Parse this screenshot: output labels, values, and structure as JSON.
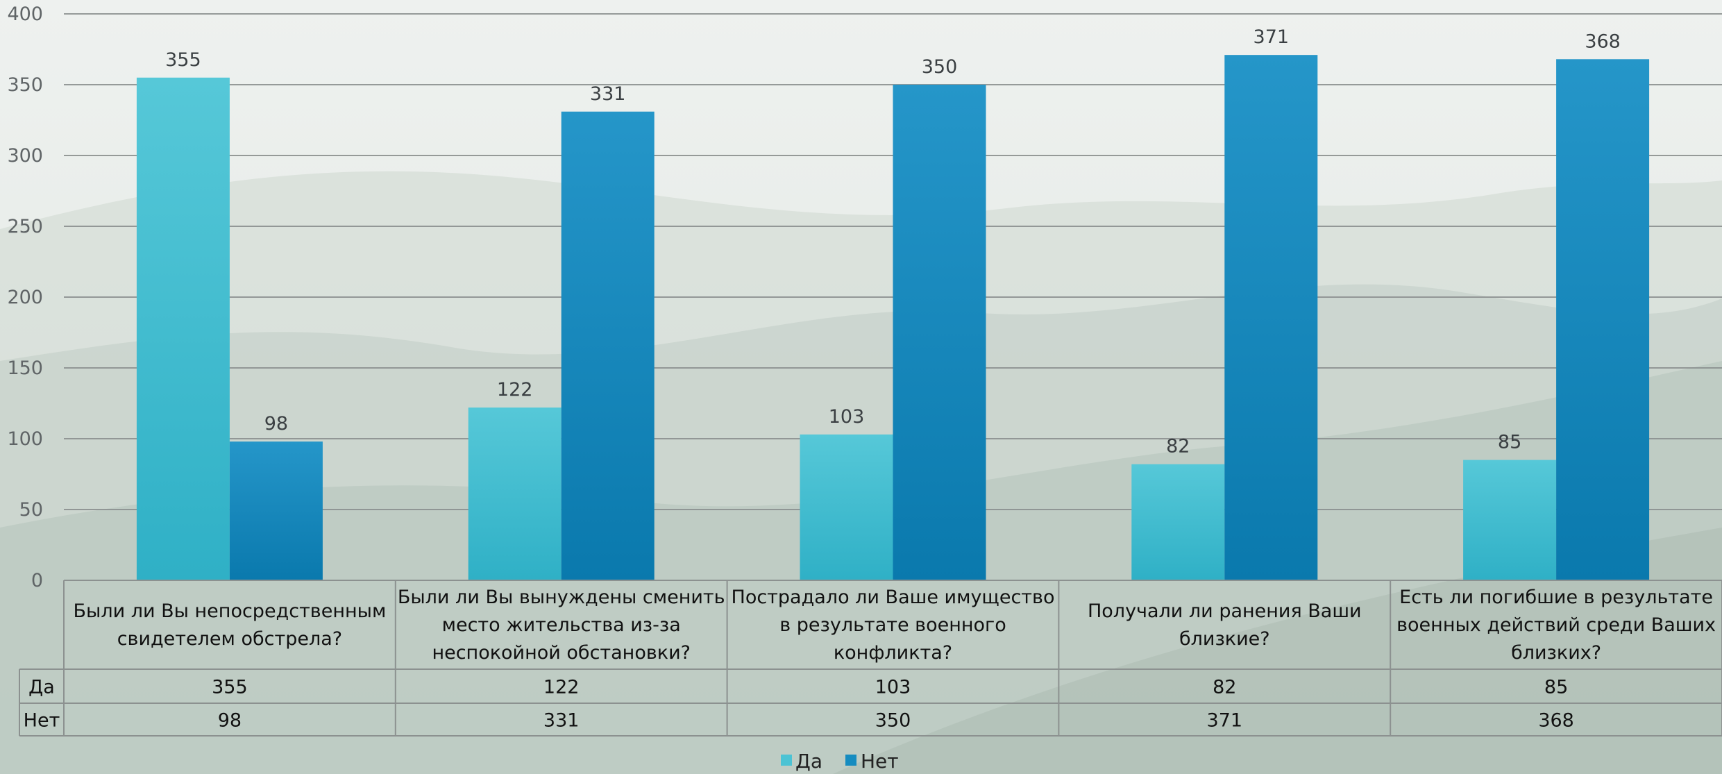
{
  "chart_data": {
    "type": "bar",
    "title": "",
    "xlabel": "",
    "ylabel": "",
    "ylim": [
      0,
      400
    ],
    "yticks": [
      0,
      50,
      100,
      150,
      200,
      250,
      300,
      350,
      400
    ],
    "grid": true,
    "legend_position": "bottom-center",
    "categories": [
      [
        "Были ли Вы непосредственным",
        "свидетелем обстрела?"
      ],
      [
        "Были ли Вы вынуждены сменить",
        "место жительства из-за",
        "неспокойной обстановки?"
      ],
      [
        "Пострадало ли Ваше имущество",
        "в результате военного",
        "конфликта?"
      ],
      [
        "Получали ли ранения Ваши",
        "близкие?"
      ],
      [
        "Есть ли погибшие в результате",
        "военных действий среди Ваших",
        "близких?"
      ]
    ],
    "series": [
      {
        "name": "Да",
        "values": [
          355,
          122,
          103,
          82,
          85
        ],
        "color": "#4cc3d4"
      },
      {
        "name": "Нет",
        "values": [
          98,
          331,
          350,
          371,
          368
        ],
        "color": "#168cc0"
      }
    ],
    "data_table": true
  }
}
